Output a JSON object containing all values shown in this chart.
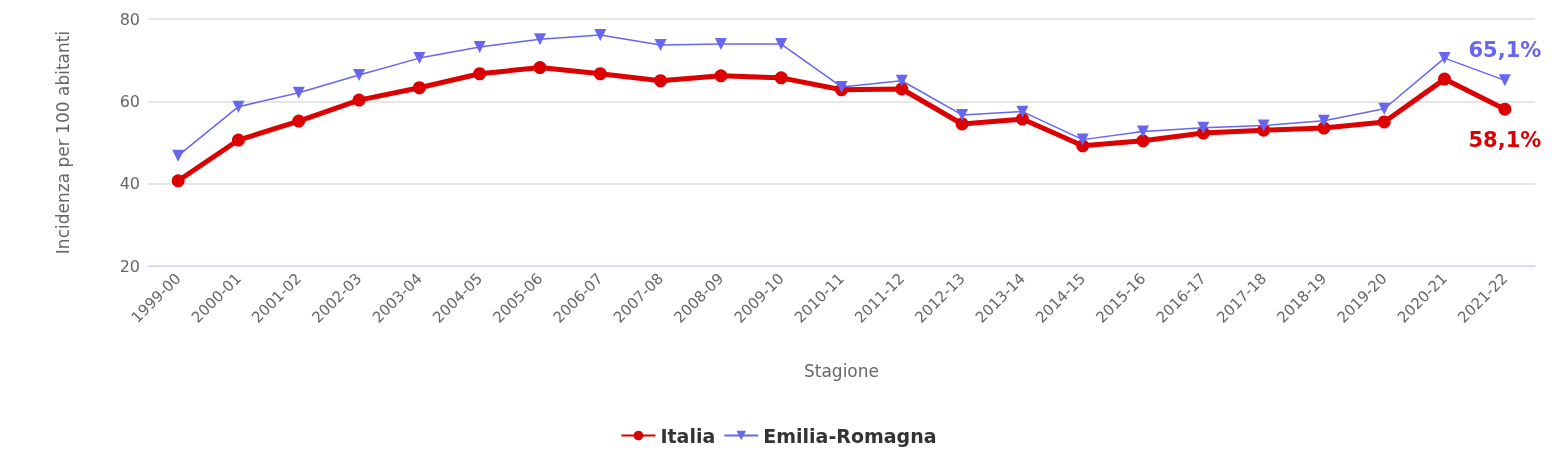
{
  "chart_data": {
    "type": "line",
    "xlabel": "Stagione",
    "ylabel": "Incidenza per 100 abitanti",
    "categories": [
      "1999-00",
      "2000-01",
      "2001-02",
      "2002-03",
      "2003-04",
      "2004-05",
      "2005-06",
      "2006-07",
      "2007-08",
      "2008-09",
      "2009-10",
      "2010-11",
      "2011-12",
      "2012-13",
      "2013-14",
      "2014-15",
      "2015-16",
      "2016-17",
      "2017-18",
      "2018-19",
      "2019-20",
      "2020-21",
      "2021-22"
    ],
    "series": [
      {
        "name": "Italia",
        "color": "#dd0000",
        "marker": "circle",
        "values": [
          40.7,
          50.6,
          55.2,
          60.3,
          63.3,
          66.7,
          68.2,
          66.7,
          65.0,
          66.2,
          65.7,
          62.8,
          63.0,
          54.5,
          55.7,
          49.2,
          50.4,
          52.3,
          53.0,
          53.5,
          55.0,
          65.4,
          58.1
        ],
        "value_labels": [
          null,
          null,
          null,
          null,
          null,
          null,
          null,
          null,
          null,
          null,
          null,
          null,
          null,
          null,
          null,
          null,
          null,
          null,
          null,
          null,
          null,
          null,
          "58,1%"
        ]
      },
      {
        "name": "Emilia-Romagna",
        "color": "#6666ee",
        "marker": "triangle",
        "values": [
          46.8,
          58.7,
          62.1,
          66.4,
          70.5,
          73.2,
          75.1,
          76.1,
          73.7,
          73.9,
          73.9,
          63.5,
          65.0,
          56.7,
          57.5,
          50.7,
          52.7,
          53.6,
          54.1,
          55.3,
          58.2,
          70.5,
          65.1
        ],
        "value_labels": [
          null,
          null,
          null,
          null,
          null,
          null,
          null,
          null,
          null,
          null,
          null,
          null,
          null,
          null,
          null,
          null,
          null,
          null,
          null,
          null,
          null,
          null,
          "65,1%"
        ]
      }
    ],
    "ylim": [
      20,
      80
    ],
    "yticks": [
      20,
      40,
      60,
      80
    ],
    "grid": "y",
    "legend": "bottom"
  }
}
